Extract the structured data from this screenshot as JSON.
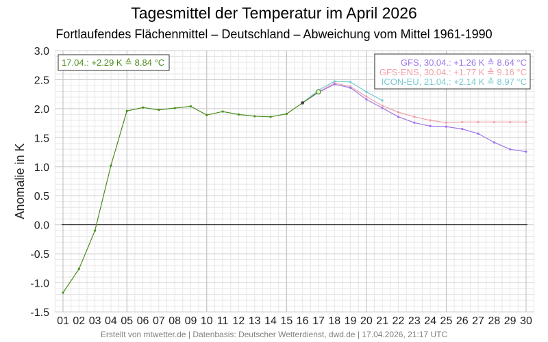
{
  "title": "Tagesmittel der Temperatur im April 2026",
  "subtitle": "Fortlaufendes Flächenmittel – Deutschland – Abweichung vom Mittel 1961-1990",
  "footer": "Erstellt von mtwetter.de | Datenbasis: Deutscher Wetterdienst, dwd.de | 17.04.2026, 21:17 UTC",
  "chart_data": {
    "type": "line",
    "ylabel": "Anomalie in K",
    "ylim": [
      -1.5,
      3.0
    ],
    "yticks": [
      "-1.5",
      "-1.0",
      "-0.5",
      "0.0",
      "0.5",
      "1.0",
      "1.5",
      "2.0",
      "2.5",
      "3.0"
    ],
    "xlim": [
      1,
      30
    ],
    "xticks": [
      "01",
      "02",
      "03",
      "04",
      "05",
      "06",
      "07",
      "08",
      "09",
      "10",
      "11",
      "12",
      "13",
      "14",
      "15",
      "16",
      "17",
      "18",
      "19",
      "20",
      "21",
      "22",
      "23",
      "24",
      "25",
      "26",
      "27",
      "28",
      "29",
      "30"
    ],
    "grid": true,
    "legend_position": "top-right",
    "observed_label": "17.04.: +2.29 K ≙ 8.84 °C",
    "series": [
      {
        "color": "#4a8c1c",
        "x": [
          1,
          2,
          3,
          4,
          5,
          6,
          7,
          8,
          9,
          10,
          11,
          12,
          13,
          14,
          15,
          16,
          17
        ],
        "values": [
          -1.17,
          -0.76,
          -0.1,
          1.02,
          1.96,
          2.02,
          1.98,
          2.01,
          2.04,
          1.89,
          1.95,
          1.9,
          1.87,
          1.86,
          1.91,
          2.1,
          2.29
        ]
      },
      {
        "name": "GFS, 30.04.: +1.26 K ≙ 8.64 °C",
        "color": "#9c75ea",
        "x": [
          16,
          17,
          18,
          19,
          20,
          21,
          22,
          23,
          24,
          25,
          26,
          27,
          28,
          29,
          30
        ],
        "values": [
          2.1,
          2.28,
          2.42,
          2.36,
          2.16,
          2.01,
          1.86,
          1.76,
          1.7,
          1.69,
          1.65,
          1.57,
          1.42,
          1.3,
          1.26
        ]
      },
      {
        "name": "GFS-ENS, 30.04.: +1.77 K ≙ 9.16 °C",
        "color": "#f0a0a8",
        "x": [
          16,
          17,
          18,
          19,
          20,
          21,
          22,
          23,
          24,
          25,
          26,
          27,
          28,
          29,
          30
        ],
        "values": [
          2.1,
          2.29,
          2.44,
          2.38,
          2.21,
          2.05,
          1.94,
          1.86,
          1.8,
          1.76,
          1.77,
          1.77,
          1.77,
          1.77,
          1.77
        ]
      },
      {
        "name": "ICON-EU, 21.04.: +2.14 K ≙ 8.97 °C",
        "color": "#78c8d0",
        "x": [
          16,
          17,
          18,
          19,
          20,
          21
        ],
        "values": [
          2.1,
          2.32,
          2.47,
          2.46,
          2.29,
          2.14
        ]
      }
    ]
  }
}
